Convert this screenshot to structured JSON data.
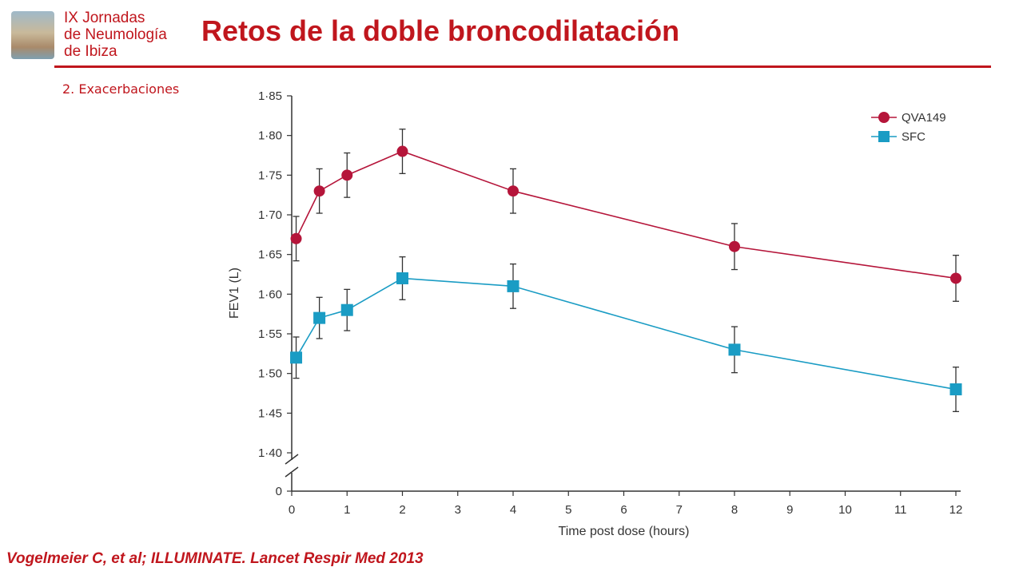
{
  "header": {
    "logo_lines": [
      "IX Jornadas",
      "de Neumología",
      "de Ibiza"
    ],
    "title": "Retos de la doble broncodilatación",
    "subtitle": "2. Exacerbaciones"
  },
  "footer": {
    "citation": "Vogelmeier C, et al; ILLUMINATE. Lancet Respir Med 2013"
  },
  "colors": {
    "accent": "#c0161d",
    "qva149": "#b5153a",
    "sfc": "#1a9cc4"
  },
  "chart_data": {
    "type": "line",
    "xlabel": "Time post dose (hours)",
    "ylabel": "FEV1 (L)",
    "x_ticks": [
      "0",
      "1",
      "2",
      "3",
      "4",
      "5",
      "6",
      "7",
      "8",
      "9",
      "10",
      "11",
      "12"
    ],
    "y_ticks": [
      "1·85",
      "1·80",
      "1·75",
      "1·70",
      "1·65",
      "1·60",
      "1·55",
      "1·50",
      "1·45",
      "1·40"
    ],
    "y_zero_label": "0",
    "ylim": [
      1.4,
      1.85
    ],
    "xlim": [
      0,
      12
    ],
    "axis_break": true,
    "legend_position": "top-right",
    "series": [
      {
        "name": "QVA149",
        "marker": "circle",
        "x": [
          0.08,
          0.5,
          1,
          2,
          4,
          8,
          12
        ],
        "y": [
          1.67,
          1.73,
          1.75,
          1.78,
          1.73,
          1.66,
          1.62
        ],
        "err": [
          0.028,
          0.028,
          0.028,
          0.028,
          0.028,
          0.029,
          0.029
        ]
      },
      {
        "name": "SFC",
        "marker": "square",
        "x": [
          0.08,
          0.5,
          1,
          2,
          4,
          8,
          12
        ],
        "y": [
          1.52,
          1.57,
          1.58,
          1.62,
          1.61,
          1.53,
          1.48
        ],
        "err": [
          0.026,
          0.026,
          0.026,
          0.027,
          0.028,
          0.029,
          0.028
        ]
      }
    ]
  }
}
